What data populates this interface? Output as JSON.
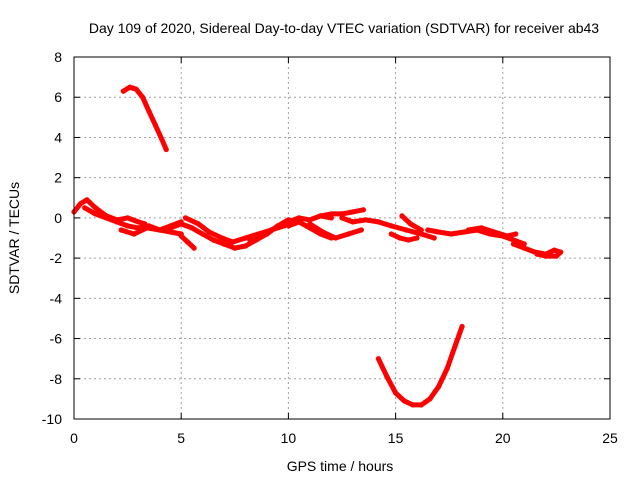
{
  "chart_data": {
    "type": "line",
    "title": "Day 109 of 2020, Sidereal Day-to-day VTEC variation (SDTVAR) for receiver ab43",
    "xlabel": "GPS time / hours",
    "ylabel": "SDTVAR / TECUs",
    "xlim": [
      0,
      25
    ],
    "ylim": [
      -10,
      8
    ],
    "xticks": [
      0,
      5,
      10,
      15,
      20,
      25
    ],
    "yticks": [
      -10,
      -8,
      -6,
      -4,
      -2,
      0,
      2,
      4,
      6,
      8
    ],
    "grid": true,
    "color": "#ff0000",
    "series": [
      {
        "name": "main-1",
        "x": [
          0.0,
          0.3,
          0.6,
          1.0,
          1.5,
          2.0,
          2.5,
          3.0,
          3.3
        ],
        "y": [
          0.3,
          0.7,
          0.9,
          0.5,
          0.1,
          -0.1,
          0.0,
          -0.2,
          -0.3
        ]
      },
      {
        "name": "main-2",
        "x": [
          0.5,
          1.0,
          1.5,
          2.0,
          2.5,
          3.0,
          3.5,
          4.0,
          4.5,
          5.0
        ],
        "y": [
          0.5,
          0.2,
          0.0,
          -0.2,
          -0.4,
          -0.5,
          -0.4,
          -0.6,
          -0.7,
          -0.8
        ]
      },
      {
        "name": "main-3",
        "x": [
          2.2,
          2.8,
          3.4,
          4.0,
          4.5,
          5.0
        ],
        "y": [
          -0.6,
          -0.8,
          -0.5,
          -0.6,
          -0.4,
          -0.2
        ]
      },
      {
        "name": "main-4",
        "x": [
          4.5,
          5.0,
          5.5,
          6.0,
          6.5,
          7.0,
          7.5,
          8.0,
          8.5,
          9.0,
          9.5,
          10.0
        ],
        "y": [
          -0.5,
          -0.3,
          -0.5,
          -0.8,
          -1.1,
          -1.3,
          -1.5,
          -1.4,
          -1.1,
          -0.8,
          -0.4,
          -0.1
        ]
      },
      {
        "name": "main-5",
        "x": [
          5.2,
          5.8,
          6.3,
          6.9,
          7.4,
          8.0,
          8.6,
          9.2,
          9.8
        ],
        "y": [
          0.0,
          -0.3,
          -0.7,
          -1.0,
          -1.2,
          -1.0,
          -0.8,
          -0.6,
          -0.4
        ]
      },
      {
        "name": "main-6",
        "x": [
          5.0,
          5.3,
          5.6
        ],
        "y": [
          -0.9,
          -1.2,
          -1.5
        ]
      },
      {
        "name": "main-7",
        "x": [
          8.2,
          8.8,
          9.4,
          10.0,
          10.5,
          11.0,
          11.5,
          12.0
        ],
        "y": [
          -1.1,
          -0.8,
          -0.5,
          -0.2,
          0.0,
          -0.1,
          0.1,
          0.0
        ]
      },
      {
        "name": "main-8",
        "x": [
          10.0,
          10.5,
          11.0,
          11.5,
          12.0
        ],
        "y": [
          -0.4,
          -0.2,
          -0.5,
          -0.8,
          -1.0
        ]
      },
      {
        "name": "main-9",
        "x": [
          11.0,
          11.6,
          12.2,
          12.8,
          13.4
        ],
        "y": [
          -0.3,
          -0.7,
          -1.0,
          -0.8,
          -0.6
        ]
      },
      {
        "name": "main-10",
        "x": [
          11.5,
          12.0,
          12.5,
          13.0,
          13.5
        ],
        "y": [
          0.1,
          0.2,
          0.2,
          0.3,
          0.4
        ]
      },
      {
        "name": "main-11",
        "x": [
          12.5,
          13.0,
          13.6,
          14.2,
          14.8,
          15.5,
          16.2,
          16.8
        ],
        "y": [
          0.0,
          -0.2,
          -0.1,
          -0.2,
          -0.4,
          -0.6,
          -0.8,
          -1.0
        ]
      },
      {
        "name": "main-12",
        "x": [
          14.8,
          15.2,
          15.6,
          16.0
        ],
        "y": [
          -0.8,
          -1.0,
          -1.1,
          -1.0
        ]
      },
      {
        "name": "main-13",
        "x": [
          15.3,
          15.7,
          16.2
        ],
        "y": [
          0.1,
          -0.3,
          -0.6
        ]
      },
      {
        "name": "main-14",
        "x": [
          16.5,
          17.0,
          17.6,
          18.2,
          18.8,
          19.4,
          20.0,
          20.5,
          21.0
        ],
        "y": [
          -0.6,
          -0.7,
          -0.8,
          -0.7,
          -0.6,
          -0.8,
          -0.9,
          -1.1,
          -1.3
        ]
      },
      {
        "name": "main-15",
        "x": [
          18.4,
          19.0,
          19.6,
          20.2,
          20.6
        ],
        "y": [
          -0.6,
          -0.5,
          -0.7,
          -0.9,
          -0.8
        ]
      },
      {
        "name": "main-16",
        "x": [
          20.5,
          21.0,
          21.5,
          22.0,
          22.4,
          22.7,
          22.5,
          22.0,
          21.6
        ],
        "y": [
          -1.3,
          -1.5,
          -1.7,
          -1.8,
          -1.6,
          -1.7,
          -1.9,
          -1.9,
          -1.8
        ]
      },
      {
        "name": "arc-top",
        "x": [
          2.3,
          2.6,
          2.9,
          3.2,
          3.5,
          3.8,
          4.1,
          4.3
        ],
        "y": [
          6.3,
          6.5,
          6.4,
          6.0,
          5.3,
          4.6,
          3.9,
          3.4
        ]
      },
      {
        "name": "arc-bottom",
        "x": [
          14.2,
          14.6,
          15.0,
          15.4,
          15.8,
          16.2,
          16.6,
          17.0,
          17.4,
          17.8,
          18.1
        ],
        "y": [
          -7.0,
          -7.9,
          -8.7,
          -9.1,
          -9.3,
          -9.3,
          -9.0,
          -8.4,
          -7.5,
          -6.3,
          -5.4
        ]
      }
    ]
  }
}
